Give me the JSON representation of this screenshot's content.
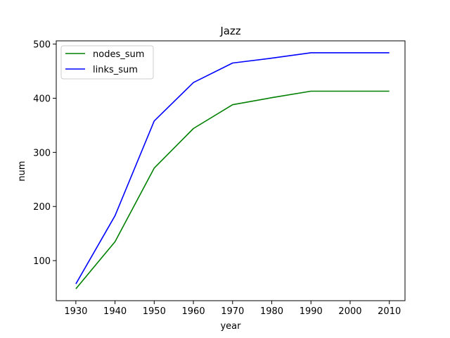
{
  "chart_data": {
    "type": "line",
    "title": "Jazz",
    "xlabel": "year",
    "ylabel": "num",
    "x": [
      1930,
      1940,
      1950,
      1960,
      1970,
      1980,
      1990,
      2000,
      2010
    ],
    "xticks": [
      1930,
      1940,
      1950,
      1960,
      1970,
      1980,
      1990,
      2000,
      2010
    ],
    "yticks": [
      100,
      200,
      300,
      400,
      500
    ],
    "xlim": [
      1925,
      2014
    ],
    "ylim": [
      26,
      506
    ],
    "grid": false,
    "legend_position": "top-left",
    "series": [
      {
        "name": "nodes_sum",
        "color": "#008000",
        "values": [
          48,
          135,
          271,
          344,
          388,
          401,
          413,
          413,
          413
        ]
      },
      {
        "name": "links_sum",
        "color": "#0000ff",
        "values": [
          57,
          183,
          358,
          429,
          465,
          474,
          484,
          484,
          484
        ]
      }
    ]
  }
}
